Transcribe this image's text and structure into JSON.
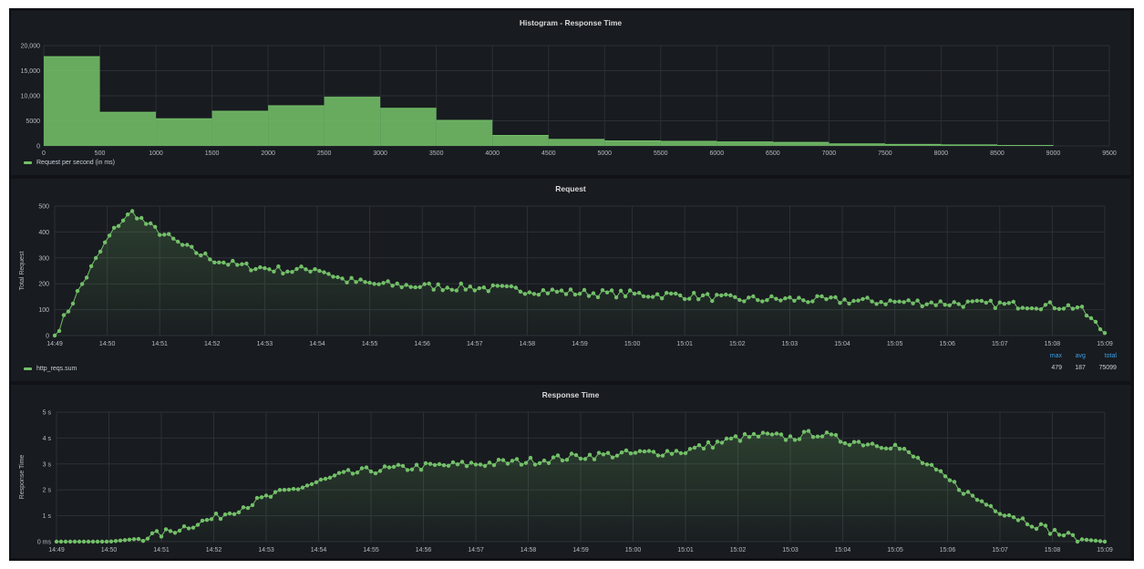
{
  "colors": {
    "series": "#73bf69",
    "grid": "#2c3037",
    "text": "#b8bcc4",
    "legend_stats_header": "#3b9ee8"
  },
  "panels": {
    "histogram": {
      "title": "Histogram - Response Time",
      "legend": "Request per second (in ms)"
    },
    "request": {
      "title": "Request",
      "legend": "http_reqs.sum",
      "stats": {
        "headers": [
          "max",
          "avg",
          "total"
        ],
        "values": [
          "479",
          "187",
          "75099"
        ]
      }
    },
    "response": {
      "title": "Response Time"
    }
  },
  "chart_data": [
    {
      "type": "bar",
      "title": "Histogram - Response Time",
      "xlabel": "",
      "ylabel": "",
      "bin_edges": [
        0,
        500,
        1000,
        1500,
        2000,
        2500,
        3000,
        3500,
        4000,
        4500,
        5000,
        5500,
        6000,
        6500,
        7000,
        7500,
        8000,
        8500,
        9000,
        9500
      ],
      "values": [
        17800,
        6700,
        5400,
        6900,
        8000,
        9700,
        7500,
        5100,
        2100,
        1300,
        1000,
        900,
        800,
        700,
        400,
        300,
        200,
        100,
        0
      ],
      "xlim": [
        0,
        9500
      ],
      "ylim": [
        0,
        20000
      ],
      "yticks": [
        "0",
        "5000",
        "10,000",
        "15,000",
        "20,000"
      ],
      "xticks": [
        "0",
        "500",
        "1000",
        "1500",
        "2000",
        "2500",
        "3000",
        "3500",
        "4000",
        "4500",
        "5000",
        "5500",
        "6000",
        "6500",
        "7000",
        "7500",
        "8000",
        "8500",
        "9000",
        "9500"
      ],
      "series": [
        {
          "name": "Request per second (in ms)"
        }
      ],
      "grid": true,
      "legend": "bottom-left"
    },
    {
      "type": "line",
      "title": "Request",
      "xlabel": "",
      "ylabel": "Total Request",
      "ylim": [
        0,
        500
      ],
      "yticks": [
        "0",
        "100",
        "200",
        "300",
        "400",
        "500"
      ],
      "xticks": [
        "14:49",
        "14:50",
        "14:51",
        "14:52",
        "14:53",
        "14:54",
        "14:55",
        "14:56",
        "14:57",
        "14:58",
        "14:59",
        "15:00",
        "15:01",
        "15:02",
        "15:03",
        "15:04",
        "15:05",
        "15:06",
        "15:07",
        "15:08",
        "15:09"
      ],
      "x": [
        "14:49",
        "14:49:30",
        "14:50",
        "14:50:15",
        "14:50:30",
        "14:50:45",
        "14:51",
        "14:51:30",
        "14:52",
        "14:52:30",
        "14:53",
        "14:53:30",
        "14:54",
        "14:54:30",
        "14:55",
        "14:56",
        "14:57",
        "14:58",
        "14:59",
        "15:00",
        "15:01",
        "15:02",
        "15:03",
        "15:04",
        "15:05",
        "15:06",
        "15:07",
        "15:08",
        "15:08:30",
        "15:09"
      ],
      "series": [
        {
          "name": "http_reqs.sum",
          "values": [
            0,
            190,
            370,
            440,
            478,
            430,
            400,
            340,
            295,
            270,
            260,
            250,
            260,
            215,
            200,
            190,
            185,
            175,
            165,
            160,
            155,
            140,
            140,
            135,
            130,
            125,
            120,
            115,
            110,
            10
          ]
        }
      ],
      "grid": true,
      "legend": "bottom-left"
    },
    {
      "type": "line",
      "title": "Response Time",
      "xlabel": "",
      "ylabel": "Response Time",
      "ylim": [
        0,
        5
      ],
      "yticks": [
        "0 ms",
        "1 s",
        "2 s",
        "3 s",
        "4 s",
        "5 s"
      ],
      "xticks": [
        "14:49",
        "14:50",
        "14:51",
        "14:52",
        "14:53",
        "14:54",
        "14:55",
        "14:56",
        "14:57",
        "14:58",
        "14:59",
        "15:00",
        "15:01",
        "15:02",
        "15:03",
        "15:04",
        "15:05",
        "15:06",
        "15:07",
        "15:08",
        "15:09"
      ],
      "x": [
        "14:49",
        "14:50",
        "14:50:30",
        "14:51",
        "14:51:30",
        "14:52",
        "14:52:30",
        "14:53",
        "14:53:30",
        "14:54",
        "14:54:30",
        "14:55",
        "14:56",
        "14:57",
        "14:58",
        "14:59",
        "15:00",
        "15:01",
        "15:02",
        "15:02:30",
        "15:03",
        "15:03:30",
        "15:04",
        "15:04:30",
        "15:05",
        "15:05:30",
        "15:06",
        "15:06:30",
        "15:07",
        "15:07:30",
        "15:08",
        "15:08:30",
        "15:09"
      ],
      "series": [
        {
          "name": "Response Time",
          "values": [
            0,
            0,
            0.1,
            0.3,
            0.6,
            0.9,
            1.3,
            1.7,
            2.0,
            2.3,
            2.6,
            2.75,
            2.9,
            3.0,
            3.1,
            3.3,
            3.4,
            3.5,
            4.0,
            4.1,
            4.0,
            4.2,
            3.9,
            3.8,
            3.7,
            3.1,
            2.4,
            1.7,
            1.2,
            0.8,
            0.4,
            0.1,
            0
          ]
        }
      ],
      "grid": true,
      "legend": "none"
    }
  ]
}
